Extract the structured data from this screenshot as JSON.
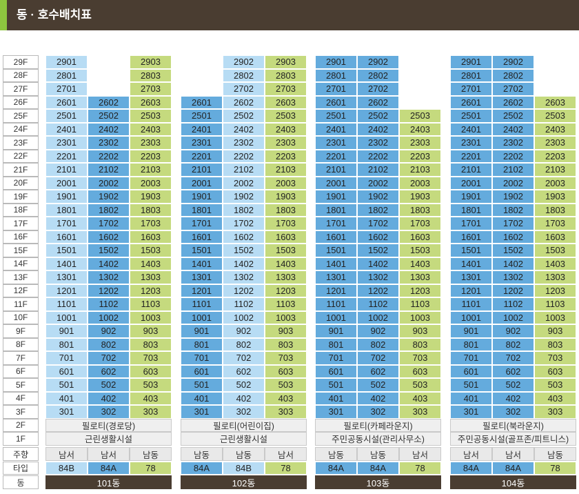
{
  "title": "동 · 호수배치표",
  "floors": [
    "29F",
    "28F",
    "27F",
    "26F",
    "25F",
    "24F",
    "23F",
    "22F",
    "21F",
    "20F",
    "19F",
    "18F",
    "17F",
    "16F",
    "15F",
    "14F",
    "13F",
    "12F",
    "11F",
    "10F",
    "9F",
    "8F",
    "7F",
    "6F",
    "5F",
    "4F",
    "3F",
    "2F",
    "1F"
  ],
  "labels": {
    "direction": "주향",
    "type": "타입",
    "building": "동"
  },
  "colors": {
    "light_blue": "#b7dcf4",
    "dark_blue": "#64abdd",
    "green": "#c5da7e",
    "header_brown": "#4a3d31",
    "accent_green": "#8dc63f"
  },
  "buildings": [
    {
      "name": "101동",
      "columns": [
        {
          "line": 1,
          "top_floor": 29,
          "color": "light_blue",
          "direction": "남서",
          "type": "84B"
        },
        {
          "line": 2,
          "top_floor": 26,
          "color": "dark_blue",
          "direction": "남서",
          "type": "84A"
        },
        {
          "line": 3,
          "top_floor": 29,
          "color": "green",
          "direction": "남동",
          "type": "78"
        }
      ],
      "pilotis": "필로티(경로당)",
      "first_floor": "근린생활시설"
    },
    {
      "name": "102동",
      "columns": [
        {
          "line": 1,
          "top_floor": 26,
          "color": "dark_blue",
          "direction": "남동",
          "type": "84A"
        },
        {
          "line": 2,
          "top_floor": 29,
          "color": "light_blue",
          "direction": "남동",
          "type": "84B"
        },
        {
          "line": 3,
          "top_floor": 29,
          "color": "green",
          "direction": "남서",
          "type": "78"
        }
      ],
      "pilotis": "필로티(어린이집)",
      "first_floor": "근린생활시설"
    },
    {
      "name": "103동",
      "columns": [
        {
          "line": 1,
          "top_floor": 29,
          "color": "dark_blue",
          "direction": "남동",
          "type": "84A"
        },
        {
          "line": 2,
          "top_floor": 29,
          "color": "dark_blue",
          "direction": "남동",
          "type": "84A"
        },
        {
          "line": 3,
          "top_floor": 25,
          "color": "green",
          "direction": "남서",
          "type": "78"
        }
      ],
      "pilotis": "필로티(카페라운지)",
      "first_floor": "주민공동시설(관리사무소)"
    },
    {
      "name": "104동",
      "columns": [
        {
          "line": 1,
          "top_floor": 29,
          "color": "dark_blue",
          "direction": "남서",
          "type": "84A"
        },
        {
          "line": 2,
          "top_floor": 29,
          "color": "dark_blue",
          "direction": "남서",
          "type": "84A"
        },
        {
          "line": 3,
          "top_floor": 26,
          "color": "green",
          "direction": "남동",
          "type": "78"
        }
      ],
      "pilotis": "필로티(북라운지)",
      "first_floor": "주민공동시설(골프존/피트니스)"
    }
  ]
}
